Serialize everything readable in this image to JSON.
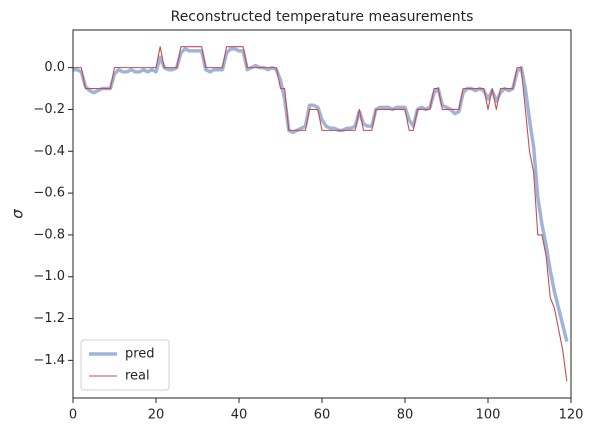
{
  "chart_data": {
    "type": "line",
    "title": "Reconstructed temperature measurements",
    "ylabel": "σ",
    "x": [
      0,
      1,
      2,
      3,
      4,
      5,
      6,
      7,
      8,
      9,
      10,
      11,
      12,
      13,
      14,
      15,
      16,
      17,
      18,
      19,
      20,
      21,
      22,
      23,
      24,
      25,
      26,
      27,
      28,
      29,
      30,
      31,
      32,
      33,
      34,
      35,
      36,
      37,
      38,
      39,
      40,
      41,
      42,
      43,
      44,
      45,
      46,
      47,
      48,
      49,
      50,
      51,
      52,
      53,
      54,
      55,
      56,
      57,
      58,
      59,
      60,
      61,
      62,
      63,
      64,
      65,
      66,
      67,
      68,
      69,
      70,
      71,
      72,
      73,
      74,
      75,
      76,
      77,
      78,
      79,
      80,
      81,
      82,
      83,
      84,
      85,
      86,
      87,
      88,
      89,
      90,
      91,
      92,
      93,
      94,
      95,
      96,
      97,
      98,
      99,
      100,
      101,
      102,
      103,
      104,
      105,
      106,
      107,
      108,
      109,
      110,
      111,
      112,
      113,
      114,
      115,
      116,
      117,
      118,
      119
    ],
    "series": [
      {
        "name": "pred",
        "color": "#9fb4d9",
        "width": 3.5,
        "values": [
          -0.01,
          -0.01,
          -0.02,
          -0.09,
          -0.11,
          -0.12,
          -0.11,
          -0.1,
          -0.1,
          -0.1,
          -0.03,
          -0.01,
          -0.02,
          -0.02,
          -0.01,
          -0.02,
          -0.02,
          -0.01,
          -0.02,
          -0.01,
          -0.02,
          0.05,
          0.0,
          -0.01,
          -0.01,
          0.0,
          0.07,
          0.09,
          0.08,
          0.08,
          0.08,
          0.08,
          -0.01,
          -0.02,
          -0.01,
          -0.01,
          -0.01,
          0.07,
          0.09,
          0.09,
          0.08,
          0.08,
          -0.01,
          0.0,
          0.01,
          0.0,
          0.0,
          -0.01,
          0.0,
          -0.01,
          -0.06,
          -0.15,
          -0.3,
          -0.31,
          -0.3,
          -0.29,
          -0.28,
          -0.18,
          -0.18,
          -0.19,
          -0.25,
          -0.28,
          -0.29,
          -0.29,
          -0.3,
          -0.3,
          -0.29,
          -0.29,
          -0.28,
          -0.21,
          -0.27,
          -0.28,
          -0.28,
          -0.2,
          -0.19,
          -0.19,
          -0.19,
          -0.2,
          -0.19,
          -0.19,
          -0.19,
          -0.25,
          -0.28,
          -0.2,
          -0.19,
          -0.2,
          -0.19,
          -0.12,
          -0.1,
          -0.18,
          -0.19,
          -0.2,
          -0.22,
          -0.21,
          -0.12,
          -0.1,
          -0.1,
          -0.11,
          -0.1,
          -0.11,
          -0.15,
          -0.11,
          -0.16,
          -0.12,
          -0.1,
          -0.11,
          -0.1,
          -0.02,
          0.0,
          -0.1,
          -0.25,
          -0.38,
          -0.62,
          -0.75,
          -0.85,
          -0.97,
          -1.07,
          -1.15,
          -1.23,
          -1.31
        ]
      },
      {
        "name": "real",
        "color": "#c44e52",
        "width": 1.1,
        "values": [
          0,
          0,
          0,
          -0.1,
          -0.1,
          -0.1,
          -0.1,
          -0.1,
          -0.1,
          -0.1,
          0,
          0,
          0,
          0,
          0,
          0,
          0,
          0,
          0,
          0,
          0,
          0.1,
          0,
          0,
          0,
          0,
          0.1,
          0.1,
          0.1,
          0.1,
          0.1,
          0.1,
          0,
          0,
          0,
          0,
          0,
          0.1,
          0.1,
          0.1,
          0.1,
          0.1,
          0,
          0,
          0,
          0,
          0,
          0,
          0,
          0,
          -0.1,
          -0.1,
          -0.3,
          -0.3,
          -0.3,
          -0.3,
          -0.3,
          -0.2,
          -0.2,
          -0.2,
          -0.3,
          -0.3,
          -0.3,
          -0.3,
          -0.3,
          -0.3,
          -0.3,
          -0.3,
          -0.3,
          -0.2,
          -0.3,
          -0.3,
          -0.3,
          -0.2,
          -0.2,
          -0.2,
          -0.2,
          -0.2,
          -0.2,
          -0.2,
          -0.2,
          -0.3,
          -0.3,
          -0.2,
          -0.2,
          -0.2,
          -0.2,
          -0.1,
          -0.1,
          -0.2,
          -0.2,
          -0.2,
          -0.2,
          -0.2,
          -0.1,
          -0.1,
          -0.1,
          -0.1,
          -0.1,
          -0.1,
          -0.2,
          -0.1,
          -0.2,
          -0.1,
          -0.1,
          -0.1,
          -0.1,
          0,
          0,
          -0.2,
          -0.4,
          -0.5,
          -0.8,
          -0.8,
          -0.9,
          -1.1,
          -1.15,
          -1.25,
          -1.35,
          -1.5
        ]
      }
    ],
    "xlim": [
      0,
      120
    ],
    "xticks": [
      0,
      20,
      40,
      60,
      80,
      100,
      120
    ],
    "ylim": [
      -1.58,
      0.18
    ],
    "yticks": [
      {
        "value": -1.4,
        "label": "−1.4"
      },
      {
        "value": -1.2,
        "label": "−1.2"
      },
      {
        "value": -1.0,
        "label": "−1.0"
      },
      {
        "value": -0.8,
        "label": "−0.8"
      },
      {
        "value": -0.6,
        "label": "−0.6"
      },
      {
        "value": -0.4,
        "label": "−0.4"
      },
      {
        "value": -0.2,
        "label": "−0.2"
      },
      {
        "value": 0,
        "label": "0.0"
      }
    ],
    "legend": "lower left"
  }
}
